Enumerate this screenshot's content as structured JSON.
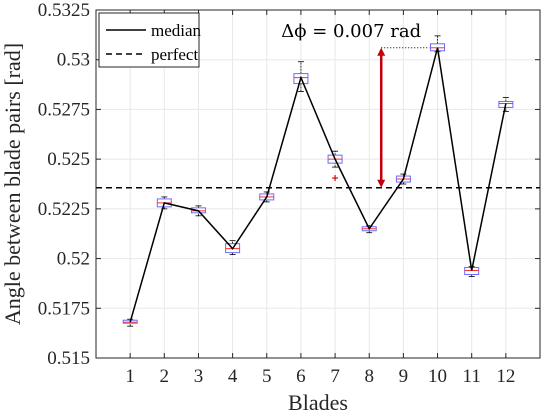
{
  "chart_data": {
    "type": "box",
    "xlabel": "Blades",
    "ylabel": "Angle between blade pairs [rad]",
    "categories": [
      "1",
      "2",
      "3",
      "4",
      "5",
      "6",
      "7",
      "8",
      "9",
      "10",
      "11",
      "12"
    ],
    "ylim": [
      0.515,
      0.5325
    ],
    "yticks": [
      "0.515",
      "0.5175",
      "0.52",
      "0.5225",
      "0.525",
      "0.5275",
      "0.53",
      "0.5325"
    ],
    "yticks_values": [
      0.515,
      0.5175,
      0.52,
      0.5225,
      0.525,
      0.5275,
      0.53,
      0.5325
    ],
    "grid": true,
    "legend_position": "top-left",
    "series": [
      {
        "name": "median",
        "style": "solid",
        "color": "#000000",
        "values": [
          0.5168,
          0.5228,
          0.5224,
          0.5205,
          0.5231,
          0.5291,
          0.525,
          0.5215,
          0.524,
          0.5306,
          0.5194,
          0.5278
        ]
      },
      {
        "name": "perfect",
        "style": "dashed",
        "color": "#000000",
        "values": [
          0.52356,
          0.52356,
          0.52356,
          0.52356,
          0.52356,
          0.52356,
          0.52356,
          0.52356,
          0.52356,
          0.52356,
          0.52356,
          0.52356
        ]
      }
    ],
    "boxes": [
      {
        "q1": 0.51675,
        "median": 0.5168,
        "q3": 0.5169,
        "whisker_low": 0.5166,
        "whisker_high": 0.51695
      },
      {
        "q1": 0.5226,
        "median": 0.5228,
        "q3": 0.523,
        "whisker_low": 0.5225,
        "whisker_high": 0.5231
      },
      {
        "q1": 0.5223,
        "median": 0.5224,
        "q3": 0.52255,
        "whisker_low": 0.52215,
        "whisker_high": 0.52265
      },
      {
        "q1": 0.5203,
        "median": 0.5205,
        "q3": 0.52075,
        "whisker_low": 0.5202,
        "whisker_high": 0.5209
      },
      {
        "q1": 0.52295,
        "median": 0.5231,
        "q3": 0.52325,
        "whisker_low": 0.52285,
        "whisker_high": 0.52335
      },
      {
        "q1": 0.5288,
        "median": 0.5291,
        "q3": 0.5293,
        "whisker_low": 0.5284,
        "whisker_high": 0.5299
      },
      {
        "q1": 0.5248,
        "median": 0.525,
        "q3": 0.5252,
        "whisker_low": 0.5246,
        "whisker_high": 0.5254
      },
      {
        "q1": 0.5214,
        "median": 0.5215,
        "q3": 0.5216,
        "whisker_low": 0.5213,
        "whisker_high": 0.52165
      },
      {
        "q1": 0.52385,
        "median": 0.524,
        "q3": 0.52415,
        "whisker_low": 0.52375,
        "whisker_high": 0.52425
      },
      {
        "q1": 0.53045,
        "median": 0.5306,
        "q3": 0.5308,
        "whisker_low": 0.5304,
        "whisker_high": 0.5312
      },
      {
        "q1": 0.5192,
        "median": 0.5194,
        "q3": 0.51955,
        "whisker_low": 0.5191,
        "whisker_high": 0.5196
      },
      {
        "q1": 0.5276,
        "median": 0.5278,
        "q3": 0.5279,
        "whisker_low": 0.5274,
        "whisker_high": 0.5281
      }
    ],
    "outliers": [
      {
        "blade": "7",
        "value": 0.52405
      }
    ],
    "annotation": {
      "text": "Δϕ = 0.007 rad",
      "blade": "8",
      "from": 0.52356,
      "to": 0.5306,
      "arrow_color": "#c0000c"
    },
    "colors": {
      "box": "#6a6aff",
      "box_median": "#ff3030",
      "outlier": "#e00000",
      "grid": "#e8e8e8"
    }
  }
}
